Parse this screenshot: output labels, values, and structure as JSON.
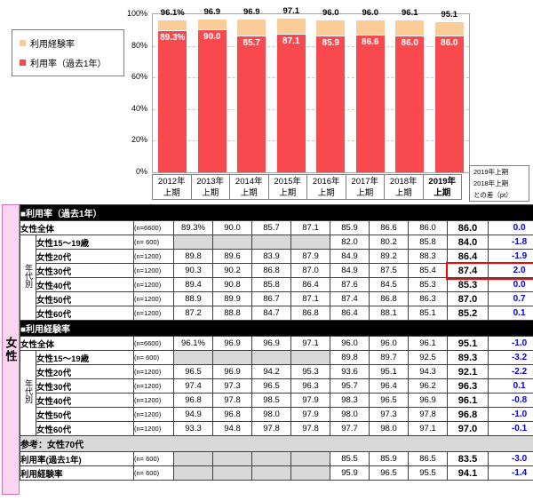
{
  "colors": {
    "bar_red": "#F8494E",
    "bar_orange": "#FBCB98",
    "diff_blue": "#0000E0",
    "pink_bg": "#FBD6F1",
    "pink_border": "#D66FB8",
    "empty_gray": "#D9D9D9",
    "highlight_red": "#FF0000"
  },
  "chart": {
    "legend": [
      {
        "label": "利用経験率",
        "color": "#FBCB98"
      },
      {
        "label": "利用率（過去1年）",
        "color": "#F8494E"
      }
    ],
    "yticks": [
      "100%",
      "80%",
      "60%",
      "40%",
      "20%",
      "0%"
    ],
    "diff_header": [
      "2019年上期",
      "2018年上期",
      "との差（pt）"
    ]
  },
  "chart_data": {
    "type": "bar",
    "stacked": true,
    "categories": [
      "2012年\n上期",
      "2013年\n上期",
      "2014年\n上期",
      "2015年\n上期",
      "2016年\n上期",
      "2017年\n上期",
      "2018年\n上期",
      "2019年\n上期"
    ],
    "series": [
      {
        "name": "利用率（過去1年）",
        "color": "#F8494E",
        "values": [
          89.3,
          90.0,
          85.7,
          87.1,
          85.9,
          86.6,
          86.0,
          86.0
        ],
        "labels": [
          "89.3%",
          "90.0",
          "85.7",
          "87.1",
          "85.9",
          "86.6",
          "86.0",
          "86.0"
        ]
      },
      {
        "name": "利用経験率",
        "color": "#FBCB98",
        "values": [
          96.1,
          96.9,
          96.9,
          97.1,
          96.0,
          96.0,
          96.1,
          95.1
        ],
        "labels": [
          "96.1%",
          "96.9",
          "96.9",
          "97.1",
          "96.0",
          "96.0",
          "96.1",
          "95.1"
        ]
      }
    ],
    "note": "利用経験率 values are bar totals (top of stack); orange segment = total minus 利用率",
    "ylim": [
      0,
      100
    ],
    "grid": "dashed horizontal at 20% steps",
    "legend_position": "left"
  },
  "table": {
    "sidebar_label": "女性",
    "sections": [
      {
        "header": "■利用率（過去1年）",
        "style": "black",
        "group_label": "年代別",
        "rows": [
          {
            "label": "女性全体",
            "n": "(n=6600)",
            "indent": false,
            "values": [
              "89.3%",
              "90.0",
              "85.7",
              "87.1",
              "85.9",
              "86.6",
              "86.0"
            ],
            "latest": "86.0",
            "diff": "0.0"
          },
          {
            "label": "女性15～19歳",
            "n": "(n= 600)",
            "indent": true,
            "values": [
              "",
              "",
              "",
              "",
              "82.0",
              "80.2",
              "85.8"
            ],
            "latest": "84.0",
            "diff": "-1.8"
          },
          {
            "label": "女性20代",
            "n": "(n=1200)",
            "indent": true,
            "values": [
              "89.8",
              "89.6",
              "83.9",
              "87.9",
              "84.9",
              "89.2",
              "88.3"
            ],
            "latest": "86.4",
            "diff": "-1.9"
          },
          {
            "label": "女性30代",
            "n": "(n=1200)",
            "indent": true,
            "values": [
              "90.3",
              "90.2",
              "86.8",
              "87.0",
              "84.9",
              "87.5",
              "85.4"
            ],
            "latest": "87.4",
            "diff": "2.0",
            "highlight": true
          },
          {
            "label": "女性40代",
            "n": "(n=1200)",
            "indent": true,
            "values": [
              "89.4",
              "90.8",
              "85.8",
              "86.4",
              "87.6",
              "84.5",
              "85.3"
            ],
            "latest": "85.3",
            "diff": "0.0"
          },
          {
            "label": "女性50代",
            "n": "(n=1200)",
            "indent": true,
            "values": [
              "88.9",
              "89.9",
              "86.7",
              "87.1",
              "87.4",
              "86.8",
              "86.3"
            ],
            "latest": "87.0",
            "diff": "0.7"
          },
          {
            "label": "女性60代",
            "n": "(n=1200)",
            "indent": true,
            "values": [
              "87.2",
              "88.8",
              "84.7",
              "86.8",
              "86.4",
              "88.1",
              "85.1"
            ],
            "latest": "85.2",
            "diff": "0.1"
          }
        ]
      },
      {
        "header": "■利用経験率",
        "style": "black",
        "group_label": "年代別",
        "rows": [
          {
            "label": "女性全体",
            "n": "(n=6600)",
            "indent": false,
            "values": [
              "96.1%",
              "96.9",
              "96.9",
              "97.1",
              "96.0",
              "96.0",
              "96.1"
            ],
            "latest": "95.1",
            "diff": "-1.0"
          },
          {
            "label": "女性15～19歳",
            "n": "(n= 600)",
            "indent": true,
            "values": [
              "",
              "",
              "",
              "",
              "89.8",
              "89.7",
              "92.5"
            ],
            "latest": "89.3",
            "diff": "-3.2"
          },
          {
            "label": "女性20代",
            "n": "(n=1200)",
            "indent": true,
            "values": [
              "96.5",
              "96.9",
              "94.2",
              "95.3",
              "93.6",
              "95.1",
              "94.3"
            ],
            "latest": "92.1",
            "diff": "-2.2"
          },
          {
            "label": "女性30代",
            "n": "(n=1200)",
            "indent": true,
            "values": [
              "97.4",
              "97.3",
              "96.5",
              "96.3",
              "95.7",
              "96.4",
              "96.2"
            ],
            "latest": "96.3",
            "diff": "0.1"
          },
          {
            "label": "女性40代",
            "n": "(n=1200)",
            "indent": true,
            "values": [
              "96.8",
              "97.8",
              "98.5",
              "97.9",
              "98.3",
              "96.5",
              "96.9"
            ],
            "latest": "96.1",
            "diff": "-0.8"
          },
          {
            "label": "女性50代",
            "n": "(n=1200)",
            "indent": true,
            "values": [
              "94.9",
              "96.8",
              "98.0",
              "97.9",
              "98.0",
              "97.3",
              "97.8"
            ],
            "latest": "96.8",
            "diff": "-1.0"
          },
          {
            "label": "女性60代",
            "n": "(n=1200)",
            "indent": true,
            "values": [
              "93.3",
              "94.8",
              "97.8",
              "97.8",
              "97.7",
              "98.0",
              "97.1"
            ],
            "latest": "97.0",
            "diff": "-0.1"
          }
        ]
      },
      {
        "header": "参考：女性70代",
        "style": "gray",
        "group_label": null,
        "rows": [
          {
            "label": "利用率(過去1年)",
            "n": "(n= 600)",
            "indent": false,
            "values": [
              "",
              "",
              "",
              "",
              "85.5",
              "85.9",
              "86.5"
            ],
            "latest": "83.5",
            "diff": "-3.0"
          },
          {
            "label": "利用経験率",
            "n": "(n= 600)",
            "indent": false,
            "values": [
              "",
              "",
              "",
              "",
              "95.9",
              "96.5",
              "95.5"
            ],
            "latest": "94.1",
            "diff": "-1.4"
          }
        ]
      }
    ]
  }
}
